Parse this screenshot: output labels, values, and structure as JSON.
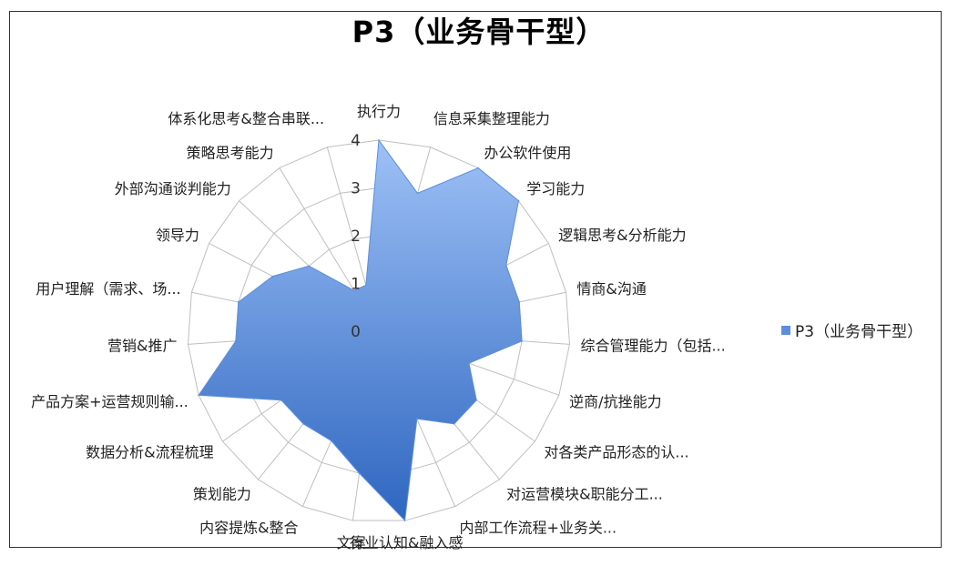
{
  "chart_data": {
    "type": "radar",
    "title": "P3（业务骨干型）",
    "categories": [
      "执行力",
      "信息采集整理能力",
      "办公软件使用",
      "学习能力",
      "逻辑思考&分析能力",
      "情商&沟通",
      "综合管理能力（包括...",
      "逆商/抗挫能力",
      "对各类产品形态的认...",
      "对运营模块&职能分工...",
      "内部工作流程+业务关...",
      "行业认知&融入感",
      "文案",
      "内容提炼&整合",
      "策划能力",
      "数据分析&流程梳理",
      "产品方案+运营规则输...",
      "营销&推广",
      "用户理解（需求、场...",
      "领导力",
      "外部沟通谈判能力",
      "策略思考能力",
      "体系化思考&整合串联..."
    ],
    "series": [
      {
        "name": "P3（业务骨干型）",
        "values": [
          4,
          3,
          4,
          4,
          3,
          3,
          3,
          2,
          2.5,
          2.5,
          2,
          4,
          3,
          2.5,
          2.5,
          2.5,
          4,
          3,
          3,
          2.5,
          2,
          1,
          1
        ]
      }
    ],
    "rlim": [
      0,
      4
    ],
    "ticks": [
      0,
      1,
      2,
      3,
      4
    ],
    "legend": "right",
    "grid": true,
    "colors": {
      "fill_top": "#9ec1f6",
      "fill_bottom": "#2e66c0",
      "legend": "#5b8fdb",
      "grid": "#bfbfbf"
    }
  }
}
